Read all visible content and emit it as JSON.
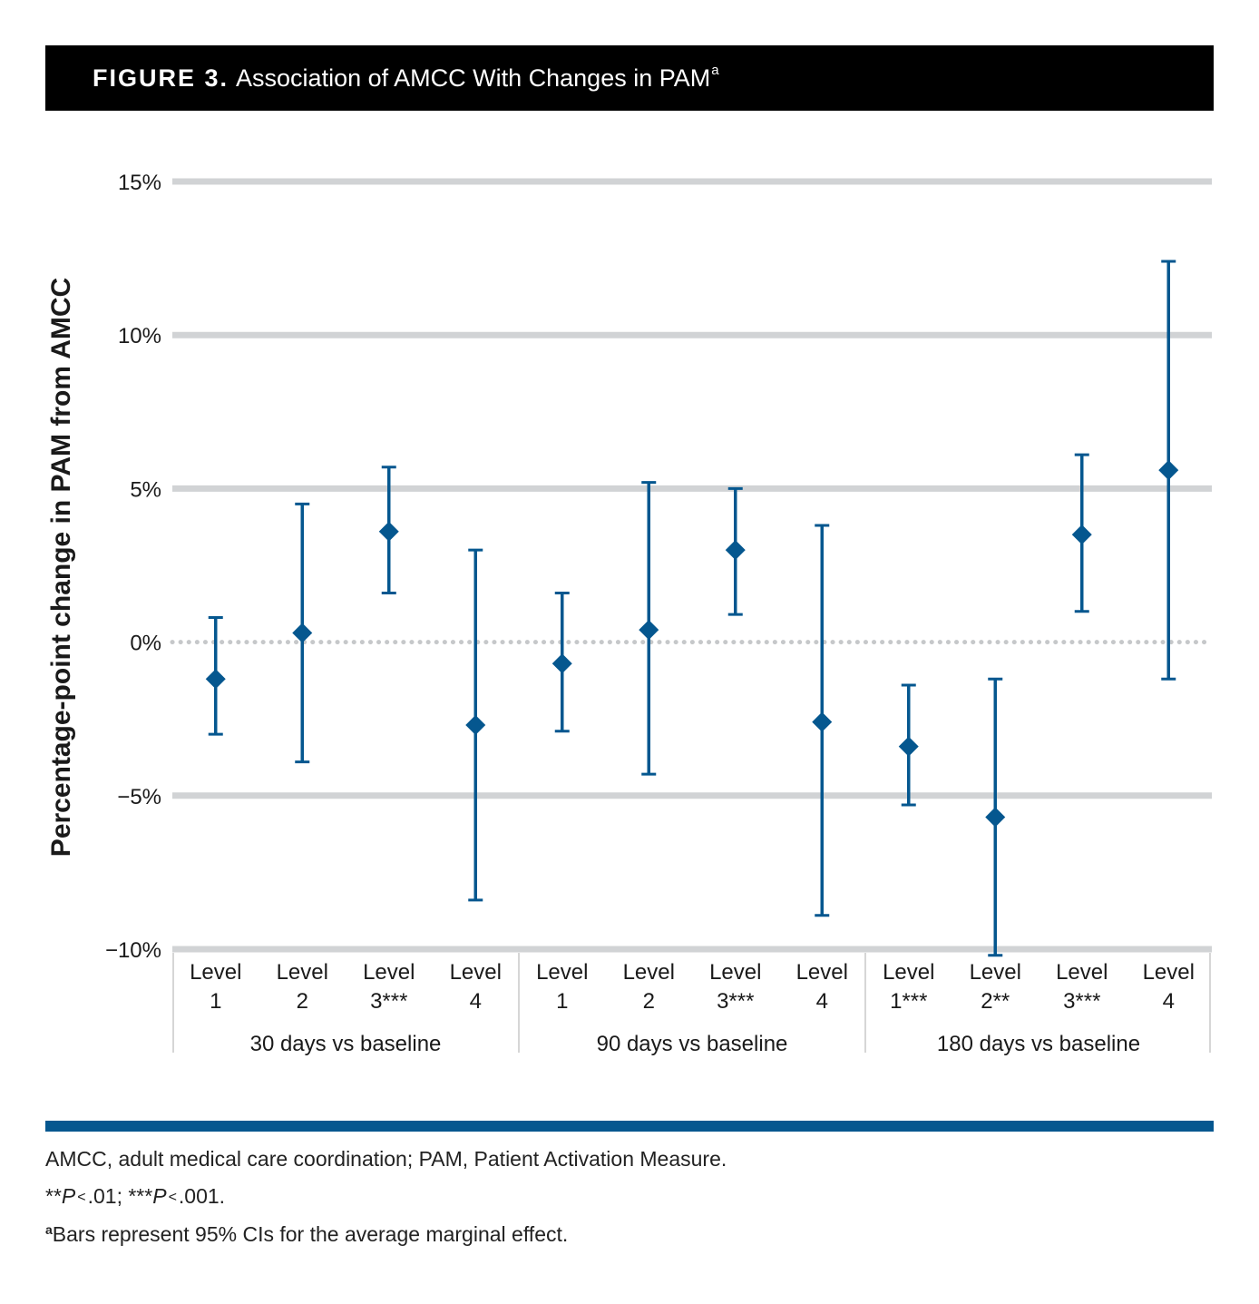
{
  "header": {
    "figure_label": "FIGURE 3.",
    "title": "Association of AMCC With Changes in PAM",
    "title_superscript": "a"
  },
  "footnotes": {
    "abbreviations": "AMCC, adult medical care coordination; PAM, Patient Activation Measure.",
    "significance": {
      "stars_1": "**",
      "p_1": "P",
      "lt_1": "<",
      "val_1": ".01;",
      "stars_2": "***",
      "p_2": "P",
      "lt_2": "<",
      "val_2": ".001."
    },
    "bars_note_marker": "a",
    "bars_note": "Bars represent 95% CIs for the average marginal effect."
  },
  "chart_data": {
    "type": "scatter",
    "ylabel": "Percentage-point change in PAM from AMCC",
    "ylim": [
      -10,
      15
    ],
    "yticks": [
      15,
      10,
      5,
      0,
      -5,
      -10
    ],
    "ytick_labels": [
      "15%",
      "10%",
      "5%",
      "0%",
      "−5%",
      "−10%"
    ],
    "grid": true,
    "zero_line": "dotted",
    "groups": [
      {
        "label": "30 days vs baseline",
        "points": [
          {
            "label_line1": "Level",
            "label_line2": "1",
            "estimate": -1.2,
            "ci_low": -3.0,
            "ci_high": 0.8
          },
          {
            "label_line1": "Level",
            "label_line2": "2",
            "estimate": 0.3,
            "ci_low": -3.9,
            "ci_high": 4.5
          },
          {
            "label_line1": "Level",
            "label_line2": "3***",
            "estimate": 3.6,
            "ci_low": 1.6,
            "ci_high": 5.7
          },
          {
            "label_line1": "Level",
            "label_line2": "4",
            "estimate": -2.7,
            "ci_low": -8.4,
            "ci_high": 3.0
          }
        ]
      },
      {
        "label": "90 days vs baseline",
        "points": [
          {
            "label_line1": "Level",
            "label_line2": "1",
            "estimate": -0.7,
            "ci_low": -2.9,
            "ci_high": 1.6
          },
          {
            "label_line1": "Level",
            "label_line2": "2",
            "estimate": 0.4,
            "ci_low": -4.3,
            "ci_high": 5.2
          },
          {
            "label_line1": "Level",
            "label_line2": "3***",
            "estimate": 3.0,
            "ci_low": 0.9,
            "ci_high": 5.0
          },
          {
            "label_line1": "Level",
            "label_line2": "4",
            "estimate": -2.6,
            "ci_low": -8.9,
            "ci_high": 3.8
          }
        ]
      },
      {
        "label": "180 days vs baseline",
        "points": [
          {
            "label_line1": "Level",
            "label_line2": "1***",
            "estimate": -3.4,
            "ci_low": -5.3,
            "ci_high": -1.4
          },
          {
            "label_line1": "Level",
            "label_line2": "2**",
            "estimate": -5.7,
            "ci_low": -10.2,
            "ci_high": -1.2
          },
          {
            "label_line1": "Level",
            "label_line2": "3***",
            "estimate": 3.5,
            "ci_low": 1.0,
            "ci_high": 6.1
          },
          {
            "label_line1": "Level",
            "label_line2": "4",
            "estimate": 5.6,
            "ci_low": -1.2,
            "ci_high": 12.4
          }
        ]
      }
    ],
    "colors": {
      "marker": "#05578f",
      "grid": "#d1d3d5",
      "zero_line": "#c6c8ca",
      "axis": "#d6d6d6",
      "text": "#1a1a1a"
    }
  }
}
